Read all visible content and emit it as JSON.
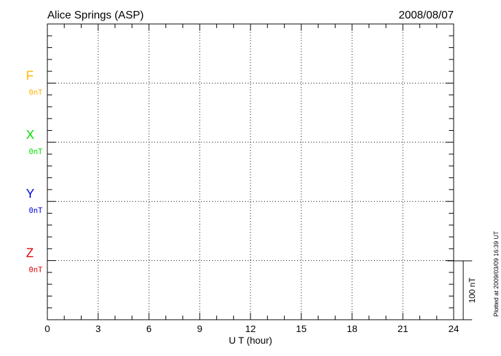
{
  "chart_data": {
    "type": "line",
    "title": "Alice Springs (ASP)",
    "date": "2008/08/07",
    "xlabel": "U T (hour)",
    "xlim": [
      0,
      24
    ],
    "xticks": [
      "0",
      "3",
      "6",
      "9",
      "12",
      "15",
      "18",
      "21",
      "24"
    ],
    "grid": true,
    "series": [
      {
        "name": "F",
        "baseline_label": "0nT",
        "color": "#ffb400",
        "values": []
      },
      {
        "name": "X",
        "baseline_label": "0nT",
        "color": "#00e000",
        "values": []
      },
      {
        "name": "Y",
        "baseline_label": "0nT",
        "color": "#0000e0",
        "values": []
      },
      {
        "name": "Z",
        "baseline_label": "0nT",
        "color": "#e00000",
        "values": []
      }
    ],
    "scale_bar_label": "100 nT",
    "footer": "Plotted at 2009/03/09 16:39 UT"
  }
}
